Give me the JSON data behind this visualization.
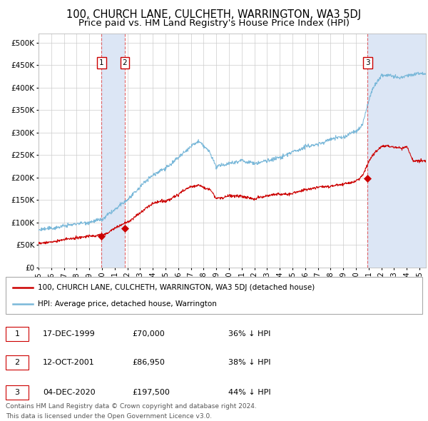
{
  "title": "100, CHURCH LANE, CULCHETH, WARRINGTON, WA3 5DJ",
  "subtitle": "Price paid vs. HM Land Registry's House Price Index (HPI)",
  "title_fontsize": 10.5,
  "subtitle_fontsize": 9.5,
  "ylim": [
    0,
    520000
  ],
  "xlim_start": 1995.0,
  "xlim_end": 2025.5,
  "yticks": [
    0,
    50000,
    100000,
    150000,
    200000,
    250000,
    300000,
    350000,
    400000,
    450000,
    500000
  ],
  "ytick_labels": [
    "£0",
    "£50K",
    "£100K",
    "£150K",
    "£200K",
    "£250K",
    "£300K",
    "£350K",
    "£400K",
    "£450K",
    "£500K"
  ],
  "xtick_years": [
    1995,
    1996,
    1997,
    1998,
    1999,
    2000,
    2001,
    2002,
    2003,
    2004,
    2005,
    2006,
    2007,
    2008,
    2009,
    2010,
    2011,
    2012,
    2013,
    2014,
    2015,
    2016,
    2017,
    2018,
    2019,
    2020,
    2021,
    2022,
    2023,
    2024,
    2025
  ],
  "hpi_color": "#7ab8d9",
  "price_color": "#cc0000",
  "marker_color": "#cc0000",
  "span_color": "#dce6f5",
  "grid_color": "#cccccc",
  "background_color": "#ffffff",
  "transactions": [
    {
      "label": "1",
      "date_year": 1999.96,
      "price": 70000,
      "pct": "36%",
      "dir": "↓",
      "date_str": "17-DEC-1999"
    },
    {
      "label": "2",
      "date_year": 2001.79,
      "price": 86950,
      "pct": "38%",
      "dir": "↓",
      "date_str": "12-OCT-2001"
    },
    {
      "label": "3",
      "date_year": 2020.92,
      "price": 197500,
      "pct": "44%",
      "dir": "↓",
      "date_str": "04-DEC-2020"
    }
  ],
  "legend_label_price": "100, CHURCH LANE, CULCHETH, WARRINGTON, WA3 5DJ (detached house)",
  "legend_label_hpi": "HPI: Average price, detached house, Warrington",
  "footer_line1": "Contains HM Land Registry data © Crown copyright and database right 2024.",
  "footer_line2": "This data is licensed under the Open Government Licence v3.0.",
  "hpi_key_years": [
    1995,
    1996,
    1997,
    1998,
    1999,
    2000,
    2001,
    2002,
    2003,
    2004,
    2005,
    2006,
    2007,
    2007.6,
    2008.5,
    2009,
    2009.5,
    2010,
    2011,
    2012,
    2013,
    2014,
    2015,
    2016,
    2017,
    2018,
    2019,
    2020,
    2020.5,
    2021,
    2021.3,
    2021.8,
    2022,
    2022.5,
    2023,
    2023.5,
    2024,
    2024.5,
    2025.4
  ],
  "hpi_key_vals": [
    83000,
    88000,
    94000,
    100000,
    104000,
    108000,
    128000,
    152000,
    178000,
    205000,
    218000,
    238000,
    268000,
    278000,
    258000,
    228000,
    232000,
    236000,
    238000,
    234000,
    241000,
    250000,
    260000,
    270000,
    274000,
    278000,
    282000,
    295000,
    310000,
    360000,
    388000,
    408000,
    418000,
    420000,
    415000,
    412000,
    418000,
    422000,
    430000
  ],
  "price_key_years": [
    1995,
    1996,
    1997,
    1998,
    1999,
    2000,
    2001,
    2002,
    2003,
    2004,
    2005,
    2006,
    2007,
    2007.6,
    2008.5,
    2009,
    2009.5,
    2010,
    2011,
    2012,
    2013,
    2014,
    2015,
    2016,
    2017,
    2018,
    2019,
    2020,
    2020.5,
    2021,
    2021.3,
    2022,
    2022.5,
    2023,
    2023.5,
    2024,
    2024.5,
    2025.4
  ],
  "price_key_vals": [
    53000,
    56000,
    60000,
    63000,
    67000,
    69000,
    82000,
    97000,
    114000,
    131000,
    140000,
    153000,
    172000,
    178000,
    165000,
    146000,
    148000,
    152000,
    154000,
    150000,
    156000,
    161000,
    167000,
    174000,
    176000,
    179000,
    181000,
    190000,
    200000,
    232000,
    246000,
    265000,
    268000,
    265000,
    263000,
    267000,
    235000,
    237000
  ]
}
